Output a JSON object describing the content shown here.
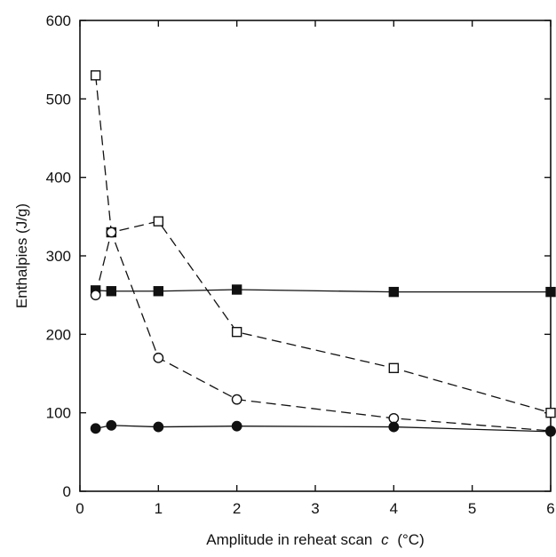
{
  "chart_data": {
    "type": "scatter",
    "xlabel": "Amplitude in reheat scan",
    "xlabel_var": "c",
    "xlabel_unit": "(°C)",
    "ylabel": "Enthalpies (J/g)",
    "xlim": [
      0,
      6
    ],
    "ylim": [
      0,
      600
    ],
    "x_ticks": [
      0,
      1,
      2,
      3,
      4,
      5,
      6
    ],
    "y_ticks": [
      0,
      100,
      200,
      300,
      400,
      500,
      600
    ],
    "grid": false,
    "legend": "none",
    "series": [
      {
        "marker": "filled-square",
        "line": "solid",
        "color": "#111111",
        "x": [
          0.2,
          0.4,
          1,
          2,
          4,
          6
        ],
        "y": [
          256,
          255,
          255,
          257,
          254,
          254
        ]
      },
      {
        "marker": "open-square",
        "line": "dashed",
        "color": "#111111",
        "x": [
          0.2,
          0.4,
          1,
          2,
          4,
          6
        ],
        "y": [
          530,
          330,
          344,
          203,
          157,
          100
        ]
      },
      {
        "marker": "open-circle",
        "line": "dashed",
        "color": "#111111",
        "x": [
          0.2,
          0.4,
          1,
          2,
          4,
          6
        ],
        "y": [
          250,
          330,
          170,
          117,
          93,
          77
        ]
      },
      {
        "marker": "filled-circle",
        "line": "solid",
        "color": "#111111",
        "x": [
          0.2,
          0.4,
          1,
          2,
          4,
          6
        ],
        "y": [
          80,
          84,
          82,
          83,
          82,
          76
        ]
      }
    ]
  }
}
